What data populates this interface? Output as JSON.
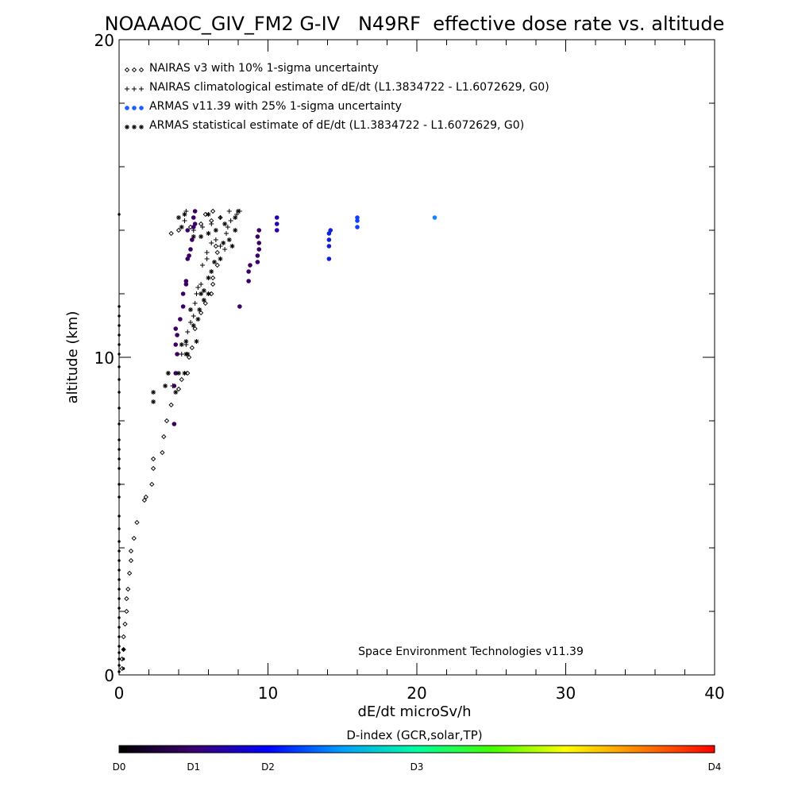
{
  "chart_data": {
    "type": "scatter",
    "title": "NOAAAOC_GIV_FM2 G-IV   N49RF  effective dose rate vs. altitude",
    "xlabel": "dE/dt microSv/h",
    "ylabel": "altitude (km)",
    "xlim": [
      0,
      40
    ],
    "ylim": [
      0,
      20
    ],
    "x_ticks": [
      0,
      10,
      20,
      30,
      40
    ],
    "y_ticks": [
      0,
      10,
      20
    ],
    "grid": false,
    "legend_placement": "top-left",
    "annotation": "Space Environment Technologies v11.39",
    "series": [
      {
        "name": "NAIRAS v3 with 10% 1-sigma uncertainty",
        "marker": "diamond",
        "color": "#000000",
        "points": [
          [
            0.2,
            0.2
          ],
          [
            0.2,
            0.5
          ],
          [
            0.3,
            0.8
          ],
          [
            0.3,
            1.2
          ],
          [
            0.4,
            1.6
          ],
          [
            0.5,
            2.0
          ],
          [
            0.5,
            2.4
          ],
          [
            0.6,
            2.7
          ],
          [
            0.7,
            3.2
          ],
          [
            0.8,
            3.6
          ],
          [
            0.8,
            3.9
          ],
          [
            1.0,
            4.3
          ],
          [
            1.2,
            4.8
          ],
          [
            1.7,
            5.5
          ],
          [
            1.8,
            5.6
          ],
          [
            2.2,
            6.0
          ],
          [
            2.3,
            6.5
          ],
          [
            2.3,
            6.8
          ],
          [
            2.9,
            7.0
          ],
          [
            3.0,
            7.5
          ],
          [
            3.2,
            8.0
          ],
          [
            3.5,
            8.5
          ],
          [
            4.0,
            9.0
          ],
          [
            4.2,
            9.3
          ],
          [
            4.6,
            9.5
          ],
          [
            4.7,
            10.0
          ],
          [
            4.9,
            10.3
          ],
          [
            5.1,
            10.9
          ],
          [
            5.5,
            11.4
          ],
          [
            5.8,
            11.7
          ],
          [
            6.2,
            12.0
          ],
          [
            6.3,
            12.3
          ],
          [
            6.3,
            12.5
          ],
          [
            6.6,
            12.9
          ],
          [
            6.6,
            13.3
          ],
          [
            6.5,
            13.5
          ],
          [
            3.5,
            13.9
          ],
          [
            4.0,
            14.0
          ],
          [
            4.8,
            14.1
          ],
          [
            5.5,
            14.2
          ],
          [
            6.2,
            14.3
          ],
          [
            6.8,
            14.4
          ],
          [
            6.3,
            14.6
          ],
          [
            5.8,
            14.5
          ]
        ]
      },
      {
        "name": "NAIRAS climatological estimate of dE/dt (L1.3834722 - L1.6072629, G0)",
        "marker": "plus",
        "color": "#000000",
        "points": [
          [
            3.3,
            9.5
          ],
          [
            3.6,
            9.1
          ],
          [
            4.2,
            10.1
          ],
          [
            4.5,
            10.4
          ],
          [
            4.6,
            10.8
          ],
          [
            4.8,
            11.1
          ],
          [
            5.0,
            11.3
          ],
          [
            5.1,
            11.7
          ],
          [
            5.2,
            12.0
          ],
          [
            5.3,
            12.2
          ],
          [
            5.5,
            12.3
          ],
          [
            5.6,
            12.9
          ],
          [
            5.9,
            13.3
          ],
          [
            5.9,
            13.1
          ],
          [
            6.2,
            13.6
          ],
          [
            6.5,
            13.7
          ],
          [
            6.8,
            13.5
          ],
          [
            7.1,
            13.4
          ],
          [
            7.2,
            13.9
          ],
          [
            7.3,
            14.1
          ],
          [
            7.5,
            14.3
          ],
          [
            7.9,
            14.5
          ],
          [
            8.1,
            14.6
          ],
          [
            7.4,
            14.6
          ],
          [
            6.8,
            14.4
          ],
          [
            6.2,
            14.2
          ],
          [
            5.6,
            14.1
          ],
          [
            5.0,
            14.0
          ],
          [
            4.4,
            14.3
          ],
          [
            4.5,
            14.6
          ]
        ]
      },
      {
        "name": "ARMAS v11.39 with 25% 1-sigma uncertainty",
        "marker": "dot",
        "color": "#1a5fff",
        "points": [
          [
            3.7,
            7.9
          ],
          [
            3.7,
            9.1
          ],
          [
            3.8,
            9.5
          ],
          [
            3.9,
            10.1
          ],
          [
            3.8,
            10.4
          ],
          [
            3.9,
            10.7
          ],
          [
            3.8,
            10.9
          ],
          [
            4.1,
            11.2
          ],
          [
            4.3,
            11.6
          ],
          [
            4.3,
            12.0
          ],
          [
            4.5,
            12.3
          ],
          [
            4.5,
            12.4
          ],
          [
            4.6,
            13.1
          ],
          [
            4.7,
            13.2
          ],
          [
            4.8,
            13.4
          ],
          [
            4.9,
            13.7
          ],
          [
            4.6,
            14.0
          ],
          [
            5.0,
            14.1
          ],
          [
            5.1,
            14.2
          ],
          [
            5.0,
            14.4
          ],
          [
            5.1,
            14.6
          ],
          [
            8.1,
            11.6
          ],
          [
            8.7,
            12.4
          ],
          [
            8.7,
            12.7
          ],
          [
            8.8,
            12.9
          ],
          [
            9.3,
            13.0
          ],
          [
            9.3,
            13.2
          ],
          [
            9.4,
            13.4
          ],
          [
            9.4,
            13.6
          ],
          [
            9.3,
            13.8
          ],
          [
            9.4,
            14.0
          ],
          [
            10.6,
            14.0
          ],
          [
            10.6,
            14.2
          ],
          [
            10.6,
            14.4
          ],
          [
            14.1,
            13.1
          ],
          [
            14.1,
            13.5
          ],
          [
            14.1,
            13.7
          ],
          [
            14.1,
            13.9
          ],
          [
            14.2,
            14.0
          ],
          [
            16.0,
            14.1
          ],
          [
            16.0,
            14.3
          ],
          [
            16.0,
            14.4
          ],
          [
            21.2,
            14.4
          ]
        ]
      },
      {
        "name": "ARMAS statistical estimate of dE/dt (L1.3834722 - L1.6072629, G0)",
        "marker": "asterisk",
        "color": "#000000",
        "points": [
          [
            2.3,
            8.6
          ],
          [
            2.3,
            8.9
          ],
          [
            3.1,
            9.1
          ],
          [
            3.3,
            9.5
          ],
          [
            3.8,
            8.9
          ],
          [
            4.0,
            9.5
          ],
          [
            4.4,
            9.5
          ],
          [
            4.6,
            10.1
          ],
          [
            4.2,
            10.4
          ],
          [
            4.5,
            10.5
          ],
          [
            5.0,
            11.0
          ],
          [
            5.3,
            11.2
          ],
          [
            5.4,
            11.5
          ],
          [
            5.5,
            12.0
          ],
          [
            5.7,
            12.1
          ],
          [
            6.0,
            12.5
          ],
          [
            6.2,
            12.7
          ],
          [
            6.4,
            13.0
          ],
          [
            6.8,
            13.1
          ],
          [
            7.0,
            13.6
          ],
          [
            7.4,
            13.7
          ],
          [
            7.6,
            13.5
          ],
          [
            7.8,
            14.0
          ],
          [
            7.1,
            14.2
          ],
          [
            6.5,
            14.0
          ],
          [
            6.0,
            13.9
          ],
          [
            5.5,
            13.8
          ],
          [
            5.0,
            13.8
          ],
          [
            4.2,
            14.1
          ],
          [
            4.0,
            14.4
          ],
          [
            4.4,
            14.5
          ],
          [
            7.8,
            14.4
          ],
          [
            8.0,
            14.6
          ],
          [
            6.0,
            14.5
          ],
          [
            6.0,
            12.0
          ],
          [
            5.7,
            11.8
          ],
          [
            4.8,
            11.5
          ],
          [
            5.2,
            10.5
          ],
          [
            4.5,
            10.1
          ]
        ]
      },
      {
        "name": "",
        "marker": "small-dot",
        "color": "#000000",
        "points": [
          [
            0.0,
            0.1
          ],
          [
            0.0,
            0.3
          ],
          [
            0.0,
            0.5
          ],
          [
            0.0,
            0.7
          ],
          [
            0.0,
            0.9
          ],
          [
            0.0,
            1.2
          ],
          [
            0.0,
            1.5
          ],
          [
            0.0,
            1.8
          ],
          [
            0.0,
            2.1
          ],
          [
            0.0,
            2.4
          ],
          [
            0.0,
            2.7
          ],
          [
            0.0,
            3.0
          ],
          [
            0.0,
            3.3
          ],
          [
            0.0,
            3.6
          ],
          [
            0.0,
            3.9
          ],
          [
            0.0,
            4.2
          ],
          [
            0.0,
            4.6
          ],
          [
            0.0,
            5.0
          ],
          [
            0.0,
            5.6
          ],
          [
            0.0,
            6.0
          ],
          [
            0.0,
            6.5
          ],
          [
            0.0,
            6.8
          ],
          [
            0.0,
            7.1
          ],
          [
            0.0,
            7.4
          ],
          [
            0.0,
            7.9
          ],
          [
            0.0,
            8.4
          ],
          [
            0.0,
            8.9
          ],
          [
            0.0,
            9.3
          ],
          [
            0.0,
            9.7
          ],
          [
            0.0,
            10.1
          ],
          [
            0.0,
            10.4
          ],
          [
            0.0,
            10.7
          ],
          [
            0.0,
            11.0
          ],
          [
            0.0,
            11.3
          ],
          [
            0.0,
            11.6
          ],
          [
            0.0,
            14.5
          ],
          [
            0.3,
            0.2
          ],
          [
            0.3,
            0.5
          ],
          [
            0.3,
            0.8
          ]
        ]
      }
    ],
    "colorbar": {
      "label": "D-index (GCR,solar,TP)",
      "ticks": [
        "D0",
        "D1",
        "D2",
        "D3",
        "D4"
      ],
      "tick_positions": [
        0,
        0.125,
        0.25,
        0.5,
        1.0
      ],
      "colors": [
        "#000000",
        "#3a0070",
        "#0000ff",
        "#00a0ff",
        "#00ffa0",
        "#40ff00",
        "#ffff00",
        "#ff8000",
        "#ff0000"
      ]
    }
  }
}
